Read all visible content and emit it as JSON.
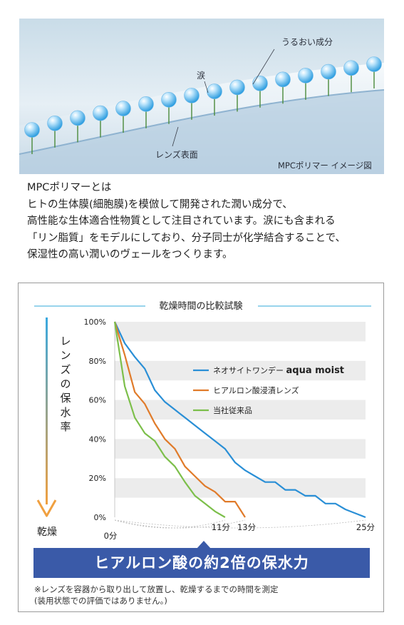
{
  "illustration": {
    "label_moisture": "うるおい成分",
    "label_tears": "涙",
    "label_lens_surface": "レンズ表面",
    "caption": "MPCポリマー イメージ図"
  },
  "description": {
    "lines": [
      "MPCポリマーとは",
      "ヒトの生体膜(細胞膜)を模倣して開発された潤い成分で、",
      "高性能な生体適合性物質として注目されています。涙にも含まれる",
      "「リン脂質」をモデルにしており、分子同士が化学結合することで、",
      "保湿性の高い潤いのヴェールをつくります。"
    ]
  },
  "chart_data": {
    "type": "line",
    "title": "乾燥時間の比較試験",
    "ylabel": "レンズの保水率",
    "ylabel_bottom": "乾燥",
    "yticks": [
      "100%",
      "80%",
      "60%",
      "40%",
      "20%",
      "0%"
    ],
    "ylim": [
      0,
      100
    ],
    "xlim": [
      0,
      25
    ],
    "x_tick_labels": [
      {
        "x": 0,
        "label": "0分"
      },
      {
        "x": 11,
        "label": "11分"
      },
      {
        "x": 13,
        "label": "13分"
      },
      {
        "x": 25,
        "label": "25分"
      }
    ],
    "legend_position": "right",
    "grid": "horizontal-bands",
    "series": [
      {
        "name": "ネオサイトワンデー aqua moist",
        "name_plain": "ネオサイトワンデー",
        "name_bold": "aqua moist",
        "color": "#2a8fd6",
        "points": [
          [
            0,
            100
          ],
          [
            1,
            89
          ],
          [
            2,
            82
          ],
          [
            3,
            76
          ],
          [
            4,
            65
          ],
          [
            5,
            59
          ],
          [
            6,
            55
          ],
          [
            7,
            51
          ],
          [
            8,
            47
          ],
          [
            9,
            43
          ],
          [
            10,
            39
          ],
          [
            11,
            35
          ],
          [
            12,
            28
          ],
          [
            13,
            24
          ],
          [
            14,
            21
          ],
          [
            15,
            18
          ],
          [
            16,
            18
          ],
          [
            17,
            14
          ],
          [
            18,
            14
          ],
          [
            19,
            11
          ],
          [
            20,
            11
          ],
          [
            21,
            7
          ],
          [
            22,
            7
          ],
          [
            23,
            4
          ],
          [
            24,
            2
          ],
          [
            25,
            0
          ]
        ]
      },
      {
        "name": "ヒアルロン酸浸漬レンズ",
        "color": "#e07b2a",
        "points": [
          [
            0,
            100
          ],
          [
            1,
            83
          ],
          [
            2,
            64
          ],
          [
            3,
            58
          ],
          [
            4,
            48
          ],
          [
            5,
            40
          ],
          [
            6,
            35
          ],
          [
            7,
            26
          ],
          [
            8,
            21
          ],
          [
            9,
            16
          ],
          [
            10,
            13
          ],
          [
            11,
            8
          ],
          [
            12,
            8
          ],
          [
            13,
            0
          ]
        ]
      },
      {
        "name": "当社従来品",
        "color": "#7cbf4a",
        "points": [
          [
            0,
            100
          ],
          [
            1,
            67
          ],
          [
            2,
            51
          ],
          [
            3,
            43
          ],
          [
            4,
            39
          ],
          [
            5,
            31
          ],
          [
            6,
            26
          ],
          [
            7,
            18
          ],
          [
            8,
            11
          ],
          [
            9,
            7
          ],
          [
            10,
            3
          ],
          [
            11,
            0
          ]
        ]
      }
    ]
  },
  "banner": {
    "text": "ヒアルロン酸の約2倍の保水力"
  },
  "footnote": {
    "line1": "※レンズを容器から取り出して放置し、乾燥するまでの時間を測定",
    "line2": "(装用状態での評価ではありません。)"
  }
}
